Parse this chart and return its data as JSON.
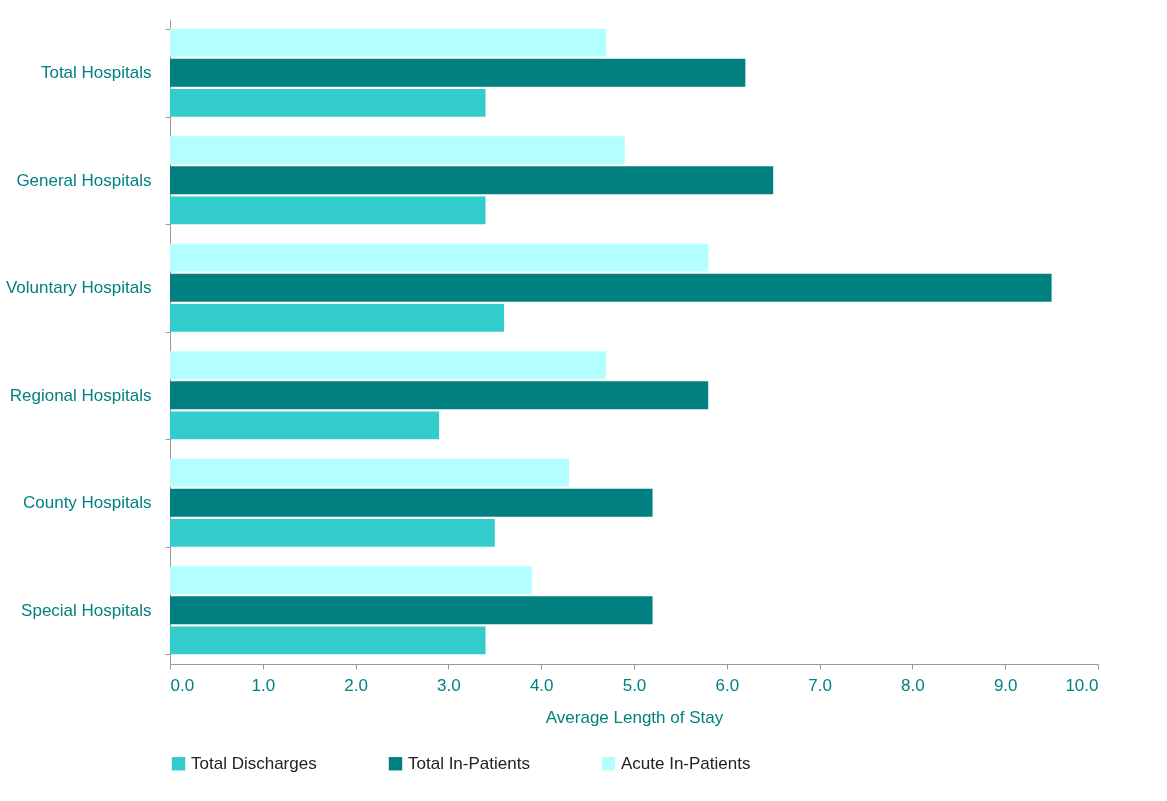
{
  "chart_data": {
    "type": "bar",
    "orientation": "horizontal",
    "xlabel": "Average Length of Stay",
    "categories": [
      "Total Hospitals",
      "General Hospitals",
      "Voluntary Hospitals",
      "Regional Hospitals",
      "County Hospitals",
      "Special Hospitals"
    ],
    "series": [
      {
        "name": "Total Discharges",
        "color": "#33cccc",
        "values": [
          3.4,
          3.4,
          3.6,
          2.9,
          3.5,
          3.4
        ]
      },
      {
        "name": "Total In-Patients",
        "color": "#008080",
        "values": [
          6.2,
          6.5,
          9.5,
          5.8,
          5.2,
          5.2
        ]
      },
      {
        "name": "Acute In-Patients",
        "color": "#b3ffff",
        "values": [
          4.7,
          4.9,
          5.8,
          4.7,
          4.3,
          3.9
        ]
      }
    ],
    "xlim": [
      0,
      10
    ],
    "xticks": [
      {
        "value": 0,
        "label": "0.0"
      },
      {
        "value": 1,
        "label": "1.0"
      },
      {
        "value": 2,
        "label": "2.0"
      },
      {
        "value": 3,
        "label": "3.0"
      },
      {
        "value": 4,
        "label": "4.0"
      },
      {
        "value": 5,
        "label": "5.0"
      },
      {
        "value": 6,
        "label": "6.0"
      },
      {
        "value": 7,
        "label": "7.0"
      },
      {
        "value": 8,
        "label": "8.0"
      },
      {
        "value": 9,
        "label": "9.0"
      },
      {
        "value": 10,
        "label": "10.0"
      }
    ],
    "grid": false,
    "legend": "bottom"
  }
}
